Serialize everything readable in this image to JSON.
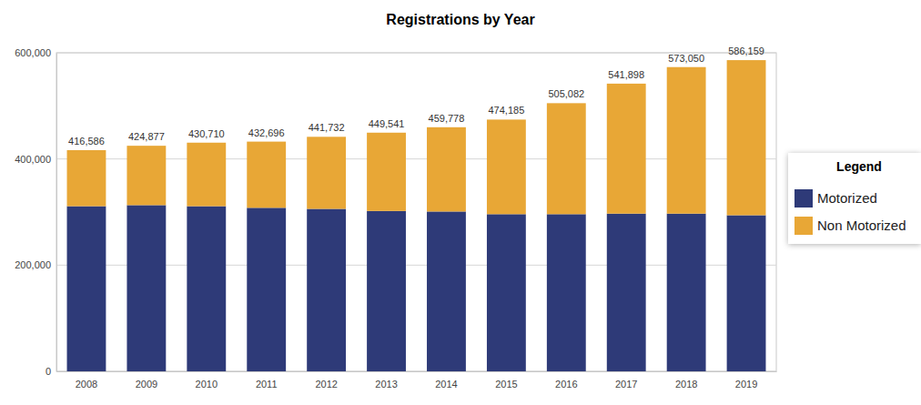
{
  "chart_data": {
    "type": "bar",
    "title": "Registrations by Year",
    "categories": [
      "2008",
      "2009",
      "2010",
      "2011",
      "2012",
      "2013",
      "2014",
      "2015",
      "2016",
      "2017",
      "2018",
      "2019"
    ],
    "series": [
      {
        "name": "Motorized",
        "color": "#2e3a78",
        "values": [
          311000,
          313000,
          311000,
          308000,
          306000,
          302000,
          301000,
          296000,
          296000,
          297000,
          297000,
          294000
        ]
      },
      {
        "name": "Non Motorized",
        "color": "#e8a736",
        "values": [
          105586,
          111877,
          119710,
          124696,
          135732,
          147541,
          158778,
          178185,
          209082,
          244898,
          276050,
          292159
        ]
      }
    ],
    "totals": [
      416586,
      424877,
      430710,
      432696,
      441732,
      449541,
      459778,
      474185,
      505082,
      541898,
      573050,
      586159
    ],
    "total_labels": [
      "416,586",
      "424,877",
      "430,710",
      "432,696",
      "441,732",
      "449,541",
      "459,778",
      "474,185",
      "505,082",
      "541,898",
      "573,050",
      "586,159"
    ],
    "ylim": [
      0,
      600000
    ],
    "yticks": [
      0,
      {
        "value": 200000,
        "label": "200,000"
      },
      {
        "value": 400000,
        "label": "400,000"
      },
      {
        "value": 600000,
        "label": "600,000"
      }
    ],
    "grid": true,
    "stacked": true,
    "data_labels": true,
    "legend": "right",
    "legend_title": "Legend"
  }
}
